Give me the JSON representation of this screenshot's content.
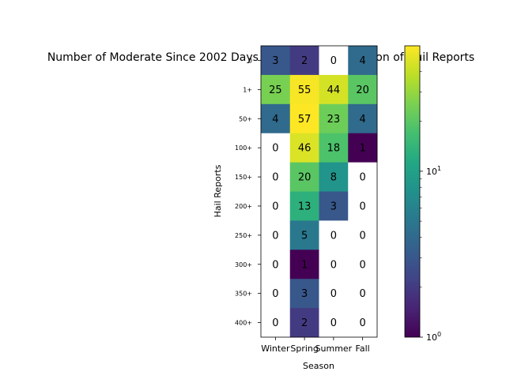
{
  "chart_data": {
    "type": "heatmap",
    "title": "Number of Moderate Since 2002 Days with each Combination of Hail Reports",
    "xlabel": "Season",
    "ylabel": "Hail Reports",
    "x_categories": [
      "Winter",
      "Spring",
      "Summer",
      "Fall"
    ],
    "y_categories": [
      "0",
      "1+",
      "50+",
      "100+",
      "150+",
      "200+",
      "250+",
      "300+",
      "350+",
      "400+"
    ],
    "values": [
      [
        3,
        2,
        0,
        4
      ],
      [
        25,
        55,
        44,
        20
      ],
      [
        4,
        57,
        23,
        4
      ],
      [
        0,
        46,
        18,
        1
      ],
      [
        0,
        20,
        8,
        0
      ],
      [
        0,
        13,
        3,
        0
      ],
      [
        0,
        5,
        0,
        0
      ],
      [
        0,
        1,
        0,
        0
      ],
      [
        0,
        3,
        0,
        0
      ],
      [
        0,
        2,
        0,
        0
      ]
    ],
    "color_scale": "log",
    "colormap": "viridis",
    "zero_color": "#ffffff",
    "vmin": 1,
    "vmax": 57,
    "colorbar_ticks": [
      {
        "value": 1,
        "label": "10^0"
      },
      {
        "value": 10,
        "label": "10^1"
      }
    ],
    "grid": false
  }
}
